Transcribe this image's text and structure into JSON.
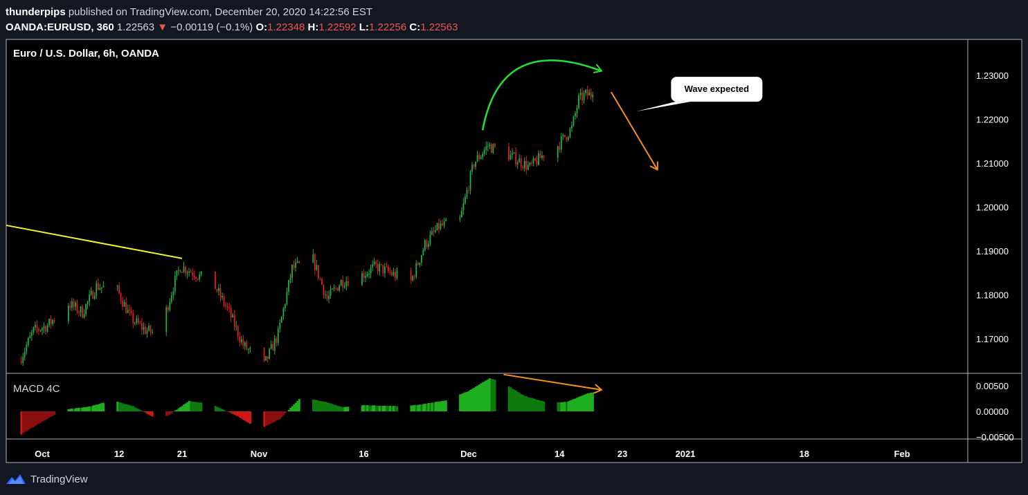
{
  "header": {
    "user": "thunderpips",
    "published": "published on TradingView.com, December 20, 2020 14:22:56 EST",
    "symbol": "OANDA:EURUSD, 360",
    "last": "1.22563",
    "change_arrow": "▼",
    "change": "−0.00119 (−0.1%)",
    "o_label": "O:",
    "o_value": "1.22348",
    "h_label": "H:",
    "h_value": "1.22592",
    "l_label": "L:",
    "l_value": "1.22256",
    "c_label": "C:",
    "c_value": "1.22563"
  },
  "footer": {
    "brand": "TradingView"
  },
  "colors": {
    "background": "#131722",
    "pane": "#000000",
    "border": "#b2b5be",
    "up": "#26a69a",
    "candle_up": "#22b14c",
    "candle_down": "#e0211d",
    "trendline": "#f5f52a",
    "curve_arrow": "#22e335",
    "projection_arrow": "#f5901f",
    "macd_up_strong": "#1fae1f",
    "macd_up_weak": "#0f7a0f",
    "macd_down_strong": "#d01818",
    "macd_down_weak": "#8b0f0f"
  },
  "chart_data": [
    {
      "type": "candlestick",
      "title": "Euro / U.S. Dollar, 6h, OANDA",
      "ylim": [
        1.1625,
        1.2355
      ],
      "yticks": [
        "1.23000",
        "1.22000",
        "1.21000",
        "1.20000",
        "1.19000",
        "1.18000",
        "1.17000"
      ],
      "yticks_values": [
        1.23,
        1.22,
        1.21,
        1.2,
        1.19,
        1.18,
        1.17
      ],
      "xticks": [
        "Oct",
        "12",
        "21",
        "Nov",
        "16",
        "Dec",
        "14",
        "23",
        "2021",
        "18",
        "Feb"
      ],
      "xticks_dates": [
        "2020-10-01",
        "2020-10-12",
        "2020-10-21",
        "2020-11-01",
        "2020-11-16",
        "2020-12-01",
        "2020-12-14",
        "2020-12-23",
        "2021-01-01",
        "2021-01-18",
        "2021-02-01"
      ],
      "close_path": [
        [
          "2020-09-28",
          1.165
        ],
        [
          "2020-09-30",
          1.1718
        ],
        [
          "2020-10-02",
          1.173
        ],
        [
          "2020-10-05",
          1.178
        ],
        [
          "2020-10-07",
          1.176
        ],
        [
          "2020-10-09",
          1.182
        ],
        [
          "2020-10-12",
          1.181
        ],
        [
          "2020-10-14",
          1.1745
        ],
        [
          "2020-10-16",
          1.172
        ],
        [
          "2020-10-18",
          1.171
        ],
        [
          "2020-10-20",
          1.182
        ],
        [
          "2020-10-21",
          1.1865
        ],
        [
          "2020-10-23",
          1.185
        ],
        [
          "2020-10-26",
          1.1818
        ],
        [
          "2020-10-28",
          1.176
        ],
        [
          "2020-10-30",
          1.1685
        ],
        [
          "2020-11-02",
          1.164
        ],
        [
          "2020-11-04",
          1.171
        ],
        [
          "2020-11-06",
          1.186
        ],
        [
          "2020-11-09",
          1.188
        ],
        [
          "2020-11-11",
          1.179
        ],
        [
          "2020-11-13",
          1.183
        ],
        [
          "2020-11-16",
          1.1845
        ],
        [
          "2020-11-18",
          1.1865
        ],
        [
          "2020-11-20",
          1.185
        ],
        [
          "2020-11-23",
          1.183
        ],
        [
          "2020-11-25",
          1.1915
        ],
        [
          "2020-11-27",
          1.1955
        ],
        [
          "2020-11-30",
          1.197
        ],
        [
          "2020-12-02",
          1.21
        ],
        [
          "2020-12-04",
          1.214
        ],
        [
          "2020-12-06",
          1.2125
        ],
        [
          "2020-12-08",
          1.211
        ],
        [
          "2020-12-10",
          1.209
        ],
        [
          "2020-12-12",
          1.212
        ],
        [
          "2020-12-14",
          1.214
        ],
        [
          "2020-12-16",
          1.218
        ],
        [
          "2020-12-17",
          1.2245
        ],
        [
          "2020-12-18",
          1.2256
        ]
      ],
      "last_close": 1.22563,
      "annotations": [
        {
          "kind": "trendline",
          "from": [
            "2020-09-28",
            1.1945
          ],
          "to": [
            "2020-10-21",
            1.1883
          ]
        },
        {
          "kind": "curved-arrow",
          "from": [
            "2020-12-03",
            1.2175
          ],
          "to": [
            "2020-12-20",
            1.231
          ]
        },
        {
          "kind": "arrow",
          "from": [
            "2020-12-20",
            1.2262
          ],
          "to": [
            "2020-12-28",
            1.2085
          ]
        },
        {
          "kind": "callout",
          "text": "Wave expected",
          "anchor": [
            "2020-12-25",
            1.2218
          ]
        }
      ]
    },
    {
      "type": "histogram",
      "title": "MACD 4C",
      "ylim": [
        -0.006,
        0.0075
      ],
      "yticks": [
        "0.00500",
        "0.00000",
        "−0.00500"
      ],
      "yticks_values": [
        0.005,
        0.0,
        -0.005
      ],
      "profile": [
        [
          "2020-09-28",
          -0.0045
        ],
        [
          "2020-10-01",
          -0.002
        ],
        [
          "2020-10-04",
          0.0003
        ],
        [
          "2020-10-08",
          0.001
        ],
        [
          "2020-10-11",
          0.0022
        ],
        [
          "2020-10-14",
          0.001
        ],
        [
          "2020-10-17",
          -0.0012
        ],
        [
          "2020-10-19",
          -0.0008
        ],
        [
          "2020-10-22",
          0.002
        ],
        [
          "2020-10-25",
          0.0015
        ],
        [
          "2020-10-29",
          -0.001
        ],
        [
          "2020-11-01",
          -0.0035
        ],
        [
          "2020-11-04",
          -0.0015
        ],
        [
          "2020-11-07",
          0.0028
        ],
        [
          "2020-11-10",
          0.002
        ],
        [
          "2020-11-13",
          0.0008
        ],
        [
          "2020-11-16",
          0.0012
        ],
        [
          "2020-11-21",
          0.001
        ],
        [
          "2020-11-24",
          0.0013
        ],
        [
          "2020-11-28",
          0.0022
        ],
        [
          "2020-12-01",
          0.004
        ],
        [
          "2020-12-04",
          0.0065
        ],
        [
          "2020-12-06",
          0.0055
        ],
        [
          "2020-12-09",
          0.003
        ],
        [
          "2020-12-12",
          0.0018
        ],
        [
          "2020-12-15",
          0.0018
        ],
        [
          "2020-12-18",
          0.0035
        ],
        [
          "2020-12-20",
          0.004
        ]
      ],
      "annotations": [
        {
          "kind": "arrow",
          "from": [
            "2020-12-06",
            0.0068
          ],
          "to": [
            "2020-12-20",
            0.0042
          ]
        }
      ]
    }
  ]
}
